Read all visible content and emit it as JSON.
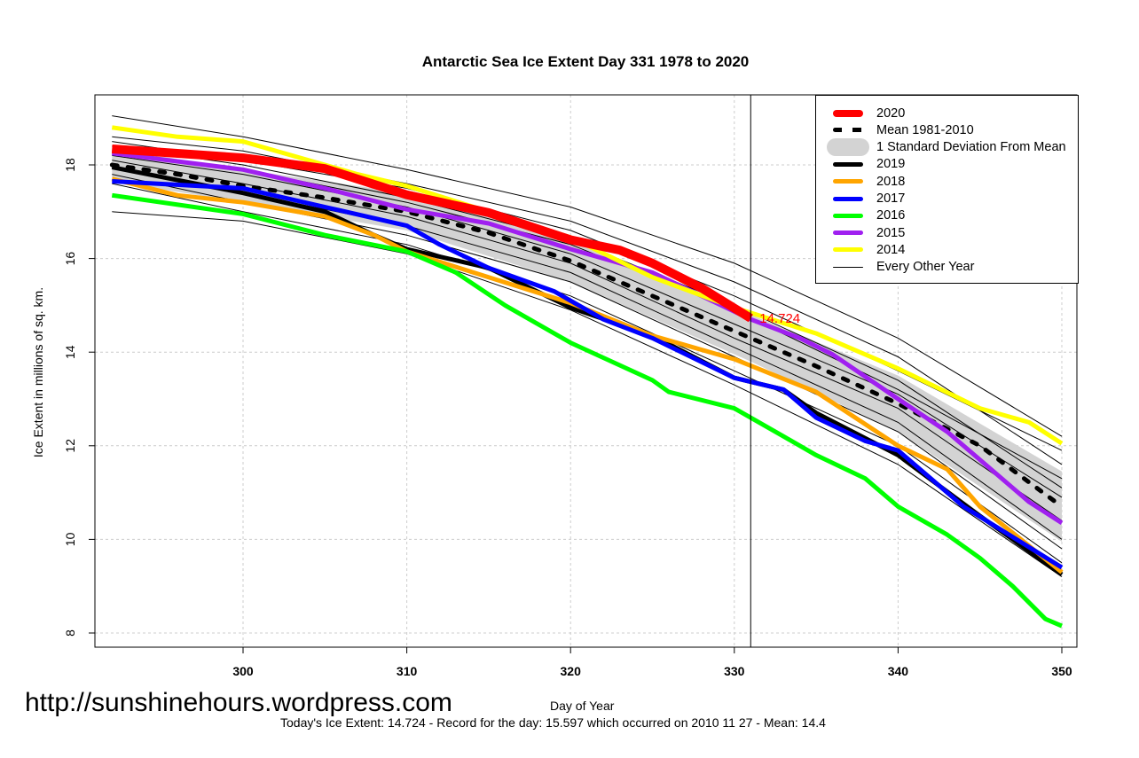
{
  "chart_data": {
    "type": "line",
    "title": "Antarctic Sea Ice Extent Day 331 1978 to 2020",
    "xlabel": "Day of Year",
    "ylabel": "Ice Extent in millions of sq. km.",
    "xlim": [
      292,
      350.9
    ],
    "ylim": [
      7.7,
      19.5
    ],
    "xticks": [
      300,
      310,
      320,
      330,
      340,
      350
    ],
    "yticks": [
      8,
      10,
      12,
      14,
      16,
      18
    ],
    "grid": true,
    "legend_position": "top-right",
    "current_day": 331,
    "annotation": {
      "text": "14.724",
      "x": 331,
      "y": 14.724,
      "color": "#ff0000"
    },
    "mean": {
      "name": "Mean 1981-2010",
      "x": [
        292,
        296,
        300,
        305,
        310,
        315,
        320,
        325,
        331,
        335,
        340,
        345,
        350
      ],
      "y": [
        18.0,
        17.8,
        17.55,
        17.3,
        17.0,
        16.55,
        15.95,
        15.2,
        14.3,
        13.7,
        12.9,
        12.0,
        10.7
      ]
    },
    "sd_band": {
      "name": "1 Standard Deviation From Mean",
      "x": [
        292,
        300,
        310,
        320,
        331,
        340,
        350
      ],
      "sd": [
        0.35,
        0.35,
        0.4,
        0.45,
        0.5,
        0.6,
        0.75
      ]
    },
    "series": [
      {
        "name": "2019",
        "color": "#000000",
        "x": [
          292,
          300,
          305,
          308,
          310,
          315,
          320,
          325,
          330,
          333,
          335,
          340,
          345,
          350
        ],
        "y": [
          17.95,
          17.4,
          17.0,
          16.5,
          16.2,
          15.8,
          14.95,
          14.35,
          13.45,
          13.2,
          12.7,
          11.8,
          10.5,
          9.25
        ]
      },
      {
        "name": "2018",
        "color": "#ffa500",
        "x": [
          292,
          296,
          300,
          305,
          308,
          310,
          315,
          320,
          325,
          330,
          335,
          340,
          343,
          345,
          350
        ],
        "y": [
          17.7,
          17.35,
          17.2,
          16.9,
          16.5,
          16.15,
          15.6,
          15.05,
          14.35,
          13.85,
          13.15,
          12.0,
          11.5,
          10.7,
          9.3
        ]
      },
      {
        "name": "2017",
        "color": "#0000ff",
        "x": [
          292,
          300,
          305,
          310,
          312,
          315,
          319,
          322,
          325,
          330,
          333,
          335,
          338,
          340,
          344,
          350
        ],
        "y": [
          17.65,
          17.5,
          17.1,
          16.7,
          16.3,
          15.8,
          15.3,
          14.7,
          14.3,
          13.45,
          13.2,
          12.6,
          12.1,
          11.9,
          10.7,
          9.4
        ]
      },
      {
        "name": "2016",
        "color": "#00ff00",
        "x": [
          292,
          300,
          305,
          310,
          313,
          316,
          320,
          325,
          326,
          330,
          333,
          335,
          338,
          340,
          343,
          345,
          347,
          349,
          350
        ],
        "y": [
          17.35,
          16.95,
          16.5,
          16.15,
          15.7,
          15.0,
          14.2,
          13.4,
          13.15,
          12.8,
          12.2,
          11.8,
          11.3,
          10.7,
          10.1,
          9.6,
          9.0,
          8.3,
          8.15
        ]
      },
      {
        "name": "2015",
        "color": "#a020f0",
        "x": [
          292,
          300,
          305,
          310,
          315,
          320,
          325,
          328,
          331,
          334,
          336,
          340,
          343,
          346,
          348,
          350
        ],
        "y": [
          18.25,
          17.9,
          17.5,
          17.05,
          16.75,
          16.2,
          15.7,
          15.2,
          14.7,
          14.3,
          13.95,
          13.0,
          12.3,
          11.4,
          10.8,
          10.35
        ]
      },
      {
        "name": "2014",
        "color": "#ffff00",
        "x": [
          292,
          296,
          300,
          305,
          307,
          310,
          315,
          320,
          325,
          330,
          335,
          340,
          345,
          348,
          350
        ],
        "y": [
          18.8,
          18.6,
          18.5,
          18.0,
          17.8,
          17.55,
          17.0,
          16.45,
          15.6,
          14.95,
          14.4,
          13.65,
          12.8,
          12.5,
          12.05
        ]
      },
      {
        "name": "2020",
        "color": "#ff0000",
        "x": [
          292,
          300,
          305,
          310,
          315,
          320,
          323,
          325,
          328,
          331
        ],
        "y": [
          18.34,
          18.15,
          17.92,
          17.36,
          16.98,
          16.4,
          16.18,
          15.9,
          15.37,
          14.724
        ]
      }
    ],
    "other_years": {
      "name": "Every Other Year",
      "x": [
        292,
        300,
        310,
        320,
        330,
        340,
        350
      ],
      "lines": [
        [
          19.05,
          18.6,
          17.9,
          17.1,
          15.9,
          14.3,
          12.2
        ],
        [
          18.6,
          18.3,
          17.6,
          16.8,
          15.5,
          13.9,
          11.6
        ],
        [
          18.4,
          18.0,
          17.3,
          16.4,
          15.0,
          13.4,
          11.1
        ],
        [
          18.2,
          17.8,
          17.1,
          16.1,
          14.6,
          13.1,
          10.9
        ],
        [
          18.1,
          17.6,
          16.9,
          15.9,
          14.3,
          12.8,
          10.4
        ],
        [
          17.95,
          17.4,
          16.7,
          15.7,
          14.1,
          12.5,
          10.0
        ],
        [
          17.8,
          17.2,
          16.5,
          15.5,
          13.9,
          12.3,
          9.8
        ],
        [
          17.6,
          17.0,
          16.3,
          15.2,
          13.6,
          12.0,
          9.5
        ],
        [
          17.0,
          16.8,
          16.1,
          14.9,
          13.3,
          11.6,
          9.2
        ],
        [
          18.3,
          17.9,
          17.2,
          16.3,
          14.9,
          13.2,
          11.3
        ],
        [
          18.5,
          18.1,
          17.5,
          16.6,
          15.2,
          13.6,
          11.9
        ]
      ]
    }
  },
  "footer": {
    "watermark": "http://sunshinehours.wordpress.com",
    "summary": "Today's Ice Extent: 14.724  - Record for the day: 15.597 which occurred on 2010 11 27  - Mean: 14.4"
  }
}
